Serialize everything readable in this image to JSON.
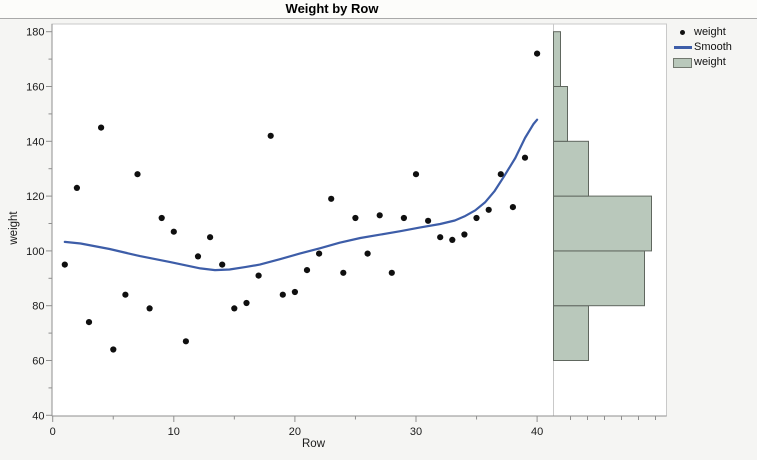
{
  "ui": {
    "title": "Weight by Row",
    "x_axis_label": "Row",
    "y_axis_label": "weight",
    "legend": [
      {
        "icon": "dot-marker-icon",
        "label": "weight"
      },
      {
        "icon": "smooth-line-icon",
        "label": "Smooth"
      },
      {
        "icon": "histogram-swatch-icon",
        "label": "weight"
      }
    ]
  },
  "colors": {
    "figure_bg": "#F5F5F3",
    "plot_bg": "#FFFFFF",
    "panel_border": "#C9C9C9",
    "axis_line": "#8F8F8F",
    "tick_label": "#1a1a1a",
    "marker": "#0F0F0F",
    "smooth_line": "#3D5DA8",
    "histogram_fill": "#B9C8BB",
    "histogram_border": "#60675F"
  },
  "chart_data": [
    {
      "type": "scatter",
      "title": "Weight by Row",
      "xlabel": "Row",
      "ylabel": "weight",
      "xlim": [
        0,
        41.4
      ],
      "ylim": [
        40,
        183
      ],
      "x_ticks": [
        0,
        10,
        20,
        30,
        40
      ],
      "x_minor_ticks": [
        5,
        15,
        25,
        35
      ],
      "y_ticks": [
        40,
        60,
        80,
        100,
        120,
        140,
        160,
        180
      ],
      "y_minor_ticks": [
        50,
        70,
        90,
        110,
        130,
        150,
        170
      ],
      "grid": false,
      "legend_position": "right",
      "points": {
        "name": "weight",
        "x": [
          1,
          2,
          3,
          4,
          5,
          6,
          7,
          8,
          9,
          10,
          11,
          12,
          13,
          14,
          15,
          16,
          17,
          18,
          19,
          20,
          21,
          22,
          23,
          24,
          25,
          26,
          27,
          28,
          29,
          30,
          31,
          32,
          33,
          34,
          35,
          36,
          37,
          38,
          39,
          40
        ],
        "y": [
          95,
          123,
          74,
          145,
          64,
          84,
          128,
          79,
          112,
          107,
          67,
          98,
          105,
          95,
          79,
          81,
          91,
          142,
          84,
          85,
          93,
          99,
          119,
          92,
          112,
          99,
          113,
          92,
          112,
          128,
          111,
          105,
          104,
          106,
          112,
          115,
          128,
          116,
          134,
          172
        ]
      },
      "series": [
        {
          "name": "Smooth",
          "type": "line",
          "points": [
            [
              1,
              103.3
            ],
            [
              2.3,
              102.7
            ],
            [
              4.7,
              100.7
            ],
            [
              7.2,
              98.1
            ],
            [
              9.7,
              95.9
            ],
            [
              12.2,
              93.6
            ],
            [
              13.4,
              93.0
            ],
            [
              14.6,
              93.2
            ],
            [
              15.9,
              94.1
            ],
            [
              17.1,
              95.0
            ],
            [
              18.8,
              97.0
            ],
            [
              20.4,
              99.0
            ],
            [
              22.1,
              101.0
            ],
            [
              23.7,
              103.0
            ],
            [
              25.4,
              104.7
            ],
            [
              27,
              105.9
            ],
            [
              28.7,
              107.2
            ],
            [
              30.3,
              108.5
            ],
            [
              32,
              109.8
            ],
            [
              33.2,
              111.1
            ],
            [
              34,
              112.6
            ],
            [
              34.9,
              114.8
            ],
            [
              35.7,
              117.7
            ],
            [
              36.5,
              121.9
            ],
            [
              37.3,
              127.4
            ],
            [
              38.2,
              133.9
            ],
            [
              39,
              141.2
            ],
            [
              39.7,
              146.3
            ],
            [
              40,
              147.9
            ]
          ]
        }
      ]
    },
    {
      "type": "bar",
      "name": "weight",
      "orientation": "horizontal",
      "value_axis": "count",
      "bin_edges": [
        40,
        60,
        80,
        100,
        120,
        140,
        160,
        180
      ],
      "counts": [
        0,
        5,
        13,
        14,
        5,
        2,
        1
      ]
    }
  ]
}
